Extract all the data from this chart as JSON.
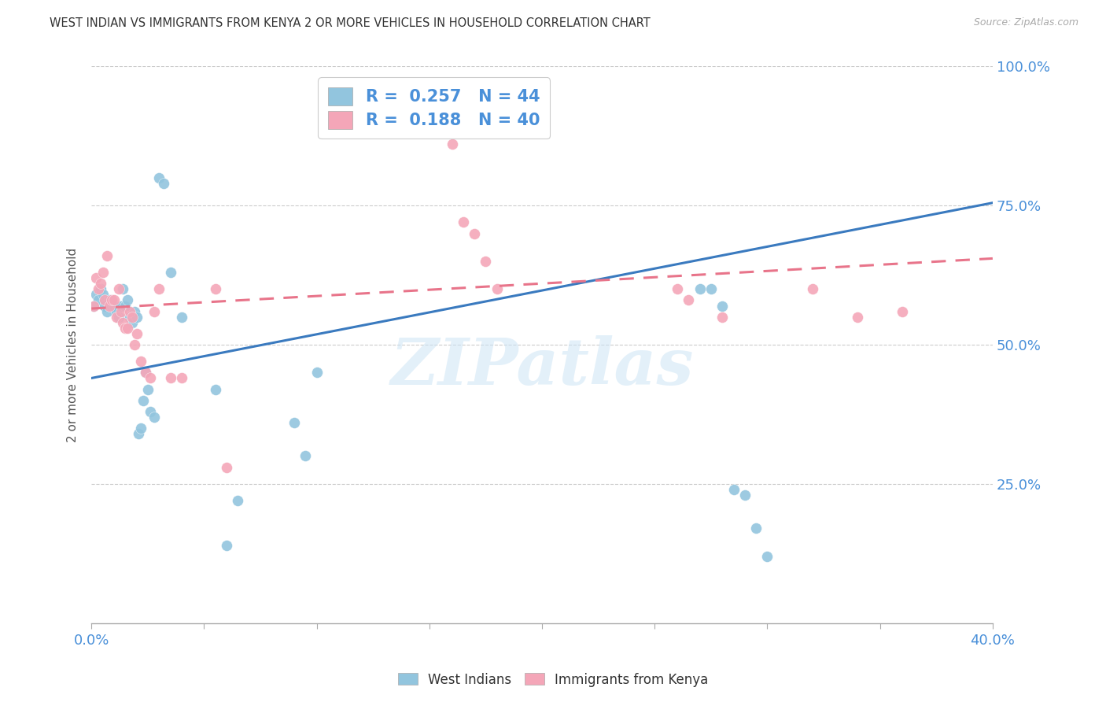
{
  "title": "WEST INDIAN VS IMMIGRANTS FROM KENYA 2 OR MORE VEHICLES IN HOUSEHOLD CORRELATION CHART",
  "source": "Source: ZipAtlas.com",
  "ylabel": "2 or more Vehicles in Household",
  "xmin": 0.0,
  "xmax": 0.4,
  "ymin": 0.0,
  "ymax": 1.0,
  "legend_R1": "0.257",
  "legend_N1": "44",
  "legend_R2": "0.188",
  "legend_N2": "40",
  "color_blue": "#92c5de",
  "color_pink": "#f4a6b8",
  "color_blue_line": "#3a7abf",
  "color_pink_line": "#e8748a",
  "watermark": "ZIPatlas",
  "blue_line_y0": 0.44,
  "blue_line_y1": 0.755,
  "pink_line_y0": 0.565,
  "pink_line_y1": 0.655,
  "wi_x": [
    0.001,
    0.002,
    0.003,
    0.004,
    0.005,
    0.006,
    0.007,
    0.008,
    0.009,
    0.01,
    0.011,
    0.012,
    0.013,
    0.014,
    0.015,
    0.016,
    0.017,
    0.018,
    0.019,
    0.02,
    0.021,
    0.022,
    0.023,
    0.024,
    0.025,
    0.026,
    0.028,
    0.03,
    0.032,
    0.035,
    0.04,
    0.055,
    0.06,
    0.065,
    0.09,
    0.095,
    0.1,
    0.27,
    0.275,
    0.28,
    0.285,
    0.29,
    0.295,
    0.3
  ],
  "wi_y": [
    0.57,
    0.59,
    0.58,
    0.6,
    0.59,
    0.57,
    0.56,
    0.58,
    0.57,
    0.57,
    0.56,
    0.55,
    0.57,
    0.6,
    0.57,
    0.58,
    0.55,
    0.54,
    0.56,
    0.55,
    0.34,
    0.35,
    0.4,
    0.45,
    0.42,
    0.38,
    0.37,
    0.8,
    0.79,
    0.63,
    0.55,
    0.42,
    0.14,
    0.22,
    0.36,
    0.3,
    0.45,
    0.6,
    0.6,
    0.57,
    0.24,
    0.23,
    0.17,
    0.12
  ],
  "ke_x": [
    0.001,
    0.002,
    0.003,
    0.004,
    0.005,
    0.006,
    0.007,
    0.008,
    0.009,
    0.01,
    0.011,
    0.012,
    0.013,
    0.014,
    0.015,
    0.016,
    0.017,
    0.018,
    0.019,
    0.02,
    0.022,
    0.024,
    0.026,
    0.028,
    0.03,
    0.035,
    0.04,
    0.055,
    0.06,
    0.16,
    0.165,
    0.17,
    0.175,
    0.18,
    0.26,
    0.265,
    0.28,
    0.32,
    0.34,
    0.36
  ],
  "ke_y": [
    0.57,
    0.62,
    0.6,
    0.61,
    0.63,
    0.58,
    0.66,
    0.57,
    0.58,
    0.58,
    0.55,
    0.6,
    0.56,
    0.54,
    0.53,
    0.53,
    0.56,
    0.55,
    0.5,
    0.52,
    0.47,
    0.45,
    0.44,
    0.56,
    0.6,
    0.44,
    0.44,
    0.6,
    0.28,
    0.86,
    0.72,
    0.7,
    0.65,
    0.6,
    0.6,
    0.58,
    0.55,
    0.6,
    0.55,
    0.56
  ]
}
